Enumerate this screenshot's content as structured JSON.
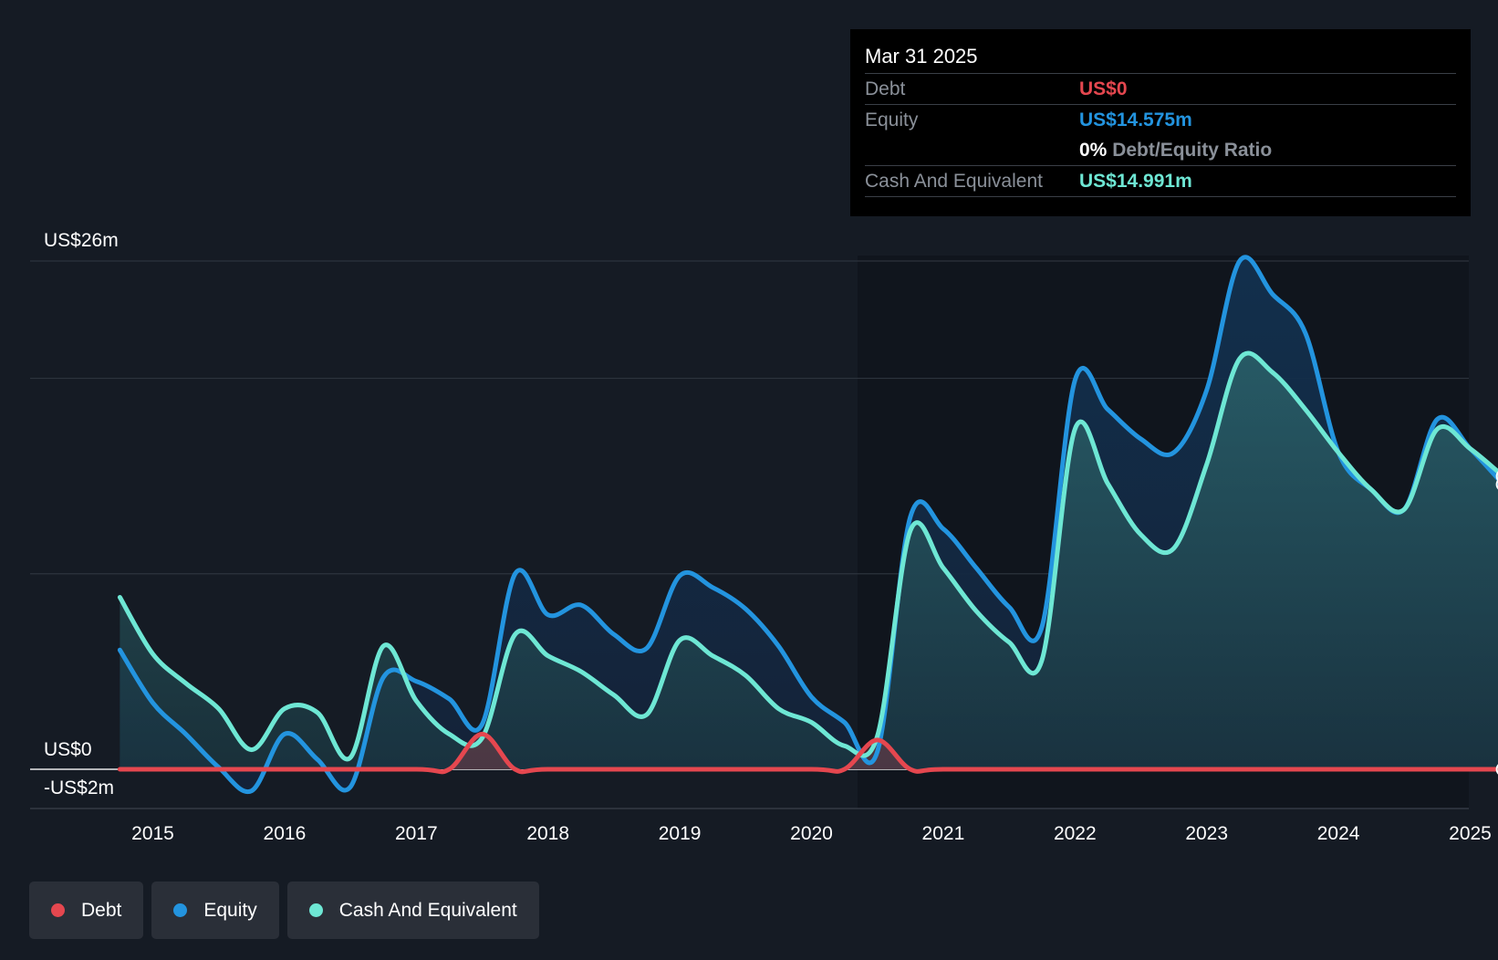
{
  "tooltip": {
    "date": "Mar 31 2025",
    "debt_label": "Debt",
    "debt_value": "US$0",
    "equity_label": "Equity",
    "equity_value": "US$14.575m",
    "ratio_value": "0%",
    "ratio_label": "Debt/Equity Ratio",
    "cash_label": "Cash And Equivalent",
    "cash_value": "US$14.991m"
  },
  "legend": [
    {
      "label": "Debt",
      "color": "#e5474f"
    },
    {
      "label": "Equity",
      "color": "#2394df"
    },
    {
      "label": "Cash And Equivalent",
      "color": "#6ee7d4"
    }
  ],
  "chart_data": {
    "type": "area",
    "title": "",
    "xlabel": "",
    "ylabel": "",
    "ylim": [
      -2,
      26
    ],
    "y_tick_labels": [
      {
        "value": 26,
        "label": "US$26m"
      },
      {
        "value": 0,
        "label": "US$0"
      },
      {
        "value": -2,
        "label": "-US$2m"
      }
    ],
    "x_tick_labels": [
      "2015",
      "2016",
      "2017",
      "2018",
      "2019",
      "2020",
      "2021",
      "2022",
      "2023",
      "2024",
      "2025"
    ],
    "gridlines_at": [
      26,
      20,
      10,
      0
    ],
    "colors": {
      "debt": "#e5474f",
      "equity": "#2394df",
      "cash": "#6ee7d4"
    },
    "series": [
      {
        "name": "Debt",
        "color": "#e5474f",
        "points": [
          [
            2014.75,
            0
          ],
          [
            2015.0,
            0
          ],
          [
            2016.0,
            0
          ],
          [
            2017.0,
            0
          ],
          [
            2017.25,
            0
          ],
          [
            2017.5,
            1.8
          ],
          [
            2017.75,
            0
          ],
          [
            2018.0,
            0
          ],
          [
            2019.0,
            0
          ],
          [
            2020.0,
            0
          ],
          [
            2020.25,
            0
          ],
          [
            2020.5,
            1.5
          ],
          [
            2020.75,
            0
          ],
          [
            2021.0,
            0
          ],
          [
            2022.0,
            0
          ],
          [
            2023.0,
            0
          ],
          [
            2024.0,
            0
          ],
          [
            2025.0,
            0
          ],
          [
            2025.25,
            0
          ]
        ]
      },
      {
        "name": "Equity",
        "color": "#2394df",
        "points": [
          [
            2014.75,
            6.1
          ],
          [
            2015.0,
            3.4
          ],
          [
            2015.25,
            1.8
          ],
          [
            2015.5,
            0.1
          ],
          [
            2015.75,
            -1.1
          ],
          [
            2016.0,
            1.8
          ],
          [
            2016.25,
            0.5
          ],
          [
            2016.5,
            -0.9
          ],
          [
            2016.75,
            4.7
          ],
          [
            2017.0,
            4.5
          ],
          [
            2017.25,
            3.6
          ],
          [
            2017.5,
            2.3
          ],
          [
            2017.75,
            10.0
          ],
          [
            2018.0,
            7.9
          ],
          [
            2018.25,
            8.4
          ],
          [
            2018.5,
            6.9
          ],
          [
            2018.75,
            6.2
          ],
          [
            2019.0,
            9.9
          ],
          [
            2019.25,
            9.3
          ],
          [
            2019.5,
            8.2
          ],
          [
            2019.75,
            6.3
          ],
          [
            2020.0,
            3.7
          ],
          [
            2020.25,
            2.4
          ],
          [
            2020.5,
            0.9
          ],
          [
            2020.75,
            12.9
          ],
          [
            2021.0,
            12.3
          ],
          [
            2021.25,
            10.3
          ],
          [
            2021.5,
            8.3
          ],
          [
            2021.75,
            7.3
          ],
          [
            2022.0,
            19.9
          ],
          [
            2022.25,
            18.4
          ],
          [
            2022.5,
            16.9
          ],
          [
            2022.75,
            16.2
          ],
          [
            2023.0,
            19.4
          ],
          [
            2023.25,
            26.0
          ],
          [
            2023.5,
            24.3
          ],
          [
            2023.75,
            22.3
          ],
          [
            2024.0,
            16.2
          ],
          [
            2024.25,
            14.3
          ],
          [
            2024.5,
            13.3
          ],
          [
            2024.75,
            17.9
          ],
          [
            2025.0,
            16.4
          ],
          [
            2025.25,
            14.575
          ]
        ]
      },
      {
        "name": "Cash And Equivalent",
        "color": "#6ee7d4",
        "points": [
          [
            2014.75,
            8.8
          ],
          [
            2015.0,
            5.9
          ],
          [
            2015.25,
            4.4
          ],
          [
            2015.5,
            3.1
          ],
          [
            2015.75,
            1.0
          ],
          [
            2016.0,
            3.1
          ],
          [
            2016.25,
            2.9
          ],
          [
            2016.5,
            0.6
          ],
          [
            2016.75,
            6.3
          ],
          [
            2017.0,
            3.5
          ],
          [
            2017.25,
            1.8
          ],
          [
            2017.5,
            1.6
          ],
          [
            2017.75,
            6.9
          ],
          [
            2018.0,
            5.8
          ],
          [
            2018.25,
            5.0
          ],
          [
            2018.5,
            3.8
          ],
          [
            2018.75,
            2.8
          ],
          [
            2019.0,
            6.6
          ],
          [
            2019.25,
            5.8
          ],
          [
            2019.5,
            4.8
          ],
          [
            2019.75,
            3.1
          ],
          [
            2020.0,
            2.4
          ],
          [
            2020.25,
            1.2
          ],
          [
            2020.5,
            1.7
          ],
          [
            2020.75,
            12.2
          ],
          [
            2021.0,
            10.3
          ],
          [
            2021.25,
            8.1
          ],
          [
            2021.5,
            6.5
          ],
          [
            2021.75,
            5.6
          ],
          [
            2022.0,
            17.4
          ],
          [
            2022.25,
            14.6
          ],
          [
            2022.5,
            12.0
          ],
          [
            2022.75,
            11.3
          ],
          [
            2023.0,
            15.6
          ],
          [
            2023.25,
            21.0
          ],
          [
            2023.5,
            20.3
          ],
          [
            2023.75,
            18.4
          ],
          [
            2024.0,
            16.2
          ],
          [
            2024.25,
            14.3
          ],
          [
            2024.5,
            13.3
          ],
          [
            2024.75,
            17.4
          ],
          [
            2025.0,
            16.4
          ],
          [
            2025.25,
            14.991
          ]
        ]
      }
    ]
  }
}
